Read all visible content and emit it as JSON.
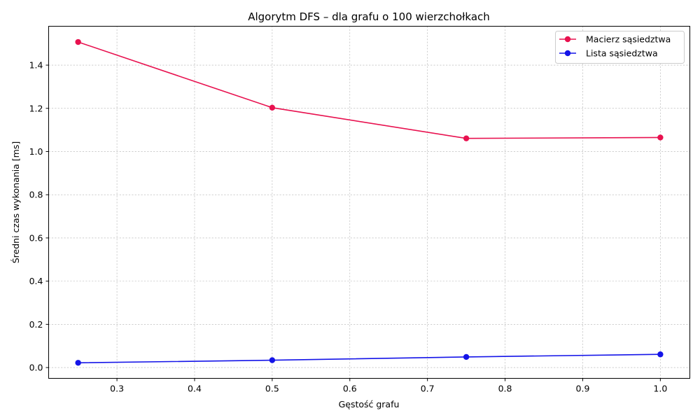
{
  "chart_data": {
    "type": "line",
    "title": "Algorytm DFS – dla grafu o 100 wierzchołkach",
    "xlabel": "Gęstość grafu",
    "ylabel": "Średni czas wykonania [ms]",
    "x": [
      0.25,
      0.5,
      0.75,
      1.0
    ],
    "xlim": [
      0.212,
      1.038
    ],
    "ylim": [
      -0.05,
      1.58
    ],
    "xticks": [
      "0.3",
      "0.4",
      "0.5",
      "0.6",
      "0.7",
      "0.8",
      "0.9",
      "1.0"
    ],
    "yticks": [
      "0.0",
      "0.2",
      "0.4",
      "0.6",
      "0.8",
      "1.0",
      "1.2",
      "1.4"
    ],
    "grid": true,
    "legend_position": "top-right",
    "series": [
      {
        "name": "Macierz sąsiedztwa",
        "color": "#e8114f",
        "values": [
          1.507,
          1.203,
          1.061,
          1.065
        ]
      },
      {
        "name": "Lista sąsiedztwa",
        "color": "#1414e8",
        "values": [
          0.022,
          0.034,
          0.049,
          0.061
        ]
      }
    ]
  }
}
